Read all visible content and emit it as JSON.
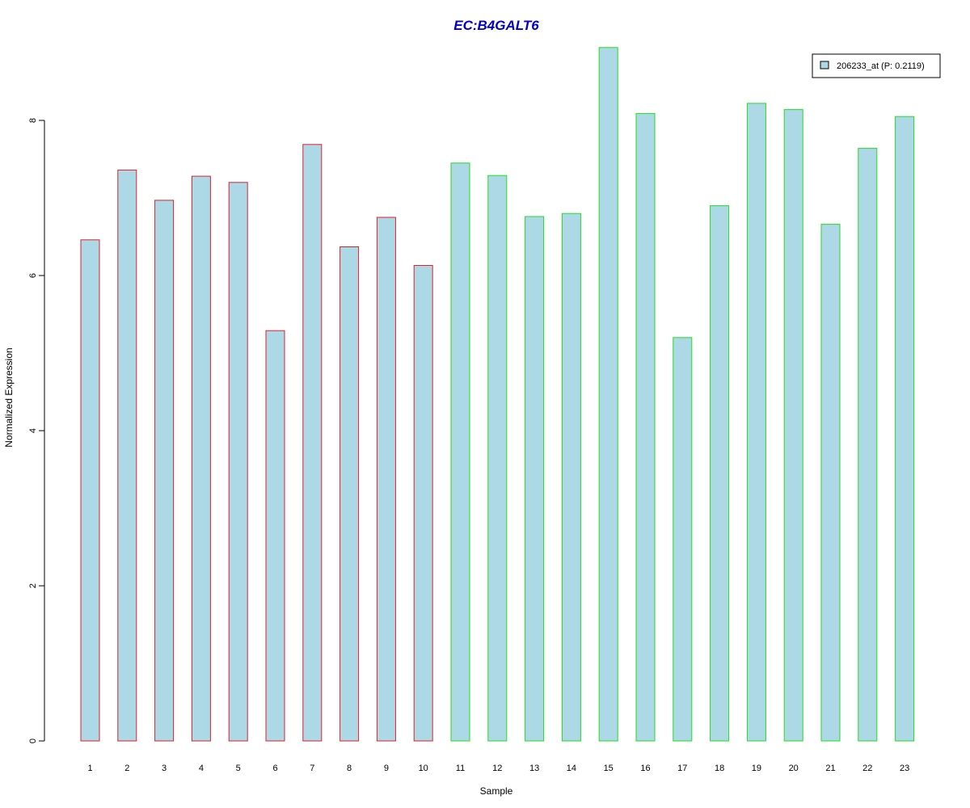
{
  "chart_data": {
    "type": "bar",
    "title": "EC:B4GALT6",
    "xlabel": "Sample",
    "ylabel": "Normalized Expression",
    "ylim": [
      0,
      9
    ],
    "yticks": [
      0,
      2,
      4,
      6,
      8
    ],
    "categories": [
      "1",
      "2",
      "3",
      "4",
      "5",
      "6",
      "7",
      "8",
      "9",
      "10",
      "11",
      "12",
      "13",
      "14",
      "15",
      "16",
      "17",
      "18",
      "19",
      "20",
      "21",
      "22",
      "23"
    ],
    "values": [
      6.46,
      7.36,
      6.97,
      7.28,
      7.2,
      5.29,
      7.69,
      6.37,
      6.75,
      6.13,
      7.45,
      7.29,
      6.76,
      6.8,
      8.94,
      8.09,
      5.2,
      6.9,
      8.22,
      8.14,
      6.66,
      7.64,
      8.05
    ],
    "bar_border_colors": [
      "#e0202a",
      "#e0202a",
      "#e0202a",
      "#e0202a",
      "#e0202a",
      "#e0202a",
      "#e0202a",
      "#e0202a",
      "#e0202a",
      "#e0202a",
      "#22dd22",
      "#22dd22",
      "#22dd22",
      "#22dd22",
      "#22dd22",
      "#22dd22",
      "#22dd22",
      "#22dd22",
      "#22dd22",
      "#22dd22",
      "#22dd22",
      "#22dd22",
      "#22dd22"
    ],
    "bar_fill": "#add8e6",
    "title_color": "#0000cc",
    "legend": {
      "position": "top-right",
      "entries": [
        {
          "label": "206233_at (P: 0.2119)",
          "color": "#add8e6"
        }
      ]
    },
    "grid": false
  }
}
